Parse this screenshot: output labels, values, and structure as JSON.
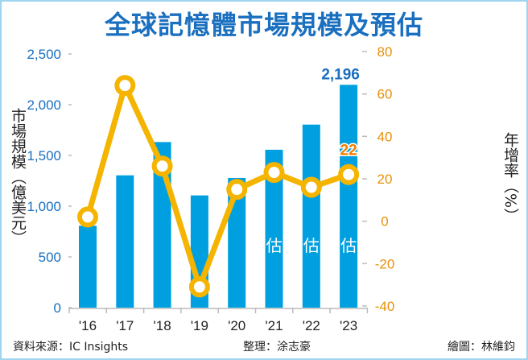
{
  "chart_data": {
    "type": "bar",
    "title": "全球記憶體市場規模及預估",
    "categories": [
      "'16",
      "'17",
      "'18",
      "'19",
      "'20",
      "'21",
      "'22",
      "'23"
    ],
    "series": [
      {
        "name": "市場規模（億美元）",
        "type": "bar",
        "axis": "left",
        "color": "#00a0e0",
        "values": [
          807,
          1304,
          1632,
          1106,
          1278,
          1556,
          1804,
          2196
        ]
      },
      {
        "name": "年增率（%）",
        "type": "line",
        "axis": "right",
        "color": "#f5b400",
        "values": [
          2,
          64,
          26,
          -31,
          15,
          23,
          16,
          22
        ]
      }
    ],
    "estimate_label": "估",
    "estimate_categories": [
      "'21",
      "'22",
      "'23"
    ],
    "data_labels": {
      "bar_last": "2,196",
      "line_last": "22"
    },
    "ylabel_left": "市場規模（億美元）",
    "ylabel_right": "年增率（%）",
    "ylim_left": [
      0,
      2500
    ],
    "yticks_left": [
      "0",
      "500",
      "1,000",
      "1,500",
      "2,000",
      "2,500"
    ],
    "ylim_right": [
      -40,
      80
    ],
    "yticks_right": [
      "-40",
      "-20",
      "0",
      "20",
      "40",
      "60",
      "80"
    ],
    "grid": false,
    "left_axis_color": "#1a6fbf",
    "right_axis_color": "#e8900a"
  },
  "footer": {
    "source": "資料來源：IC Insights",
    "editor": "整理：涂志豪",
    "illustrator": "繪圖：林維鈞"
  }
}
